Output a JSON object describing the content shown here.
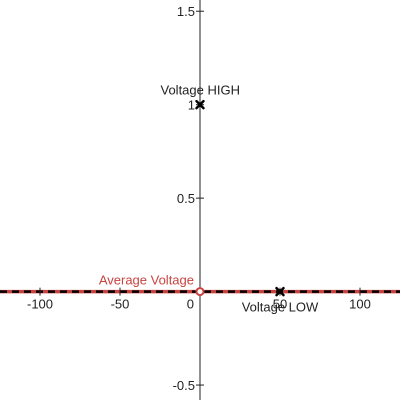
{
  "chart_data": {
    "type": "scatter",
    "title": "",
    "xlabel": "",
    "ylabel": "",
    "xlim": [
      -125,
      125
    ],
    "ylim": [
      -0.58,
      1.56
    ],
    "grid": false,
    "x_ticks": [
      {
        "value": -100,
        "label": "-100"
      },
      {
        "value": -50,
        "label": "-50"
      },
      {
        "value": 50,
        "label": "50"
      },
      {
        "value": 100,
        "label": "100"
      }
    ],
    "y_ticks": [
      {
        "value": -0.5,
        "label": "-0.5"
      },
      {
        "value": 0.5,
        "label": "0.5"
      },
      {
        "value": 1,
        "label": "1"
      },
      {
        "value": 1.5,
        "label": "1.5"
      }
    ],
    "origin_label": "0",
    "points": [
      {
        "x": 0,
        "y": 1,
        "label": "Voltage HIGH",
        "marker": "x",
        "color": "#000000",
        "label_position": "above-left"
      },
      {
        "x": 50,
        "y": 0,
        "label": "Voltage LOW",
        "marker": "x",
        "color": "#000000",
        "label_position": "below"
      }
    ],
    "lines": [
      {
        "y": 0,
        "label": "Average Voltage",
        "color": "#c74440",
        "style": "solid",
        "label_position": "above-left"
      },
      {
        "y": 0,
        "color": "#000000",
        "style": "dashed"
      }
    ],
    "open_point": {
      "x": 0,
      "y": 0,
      "color": "#c74440"
    }
  }
}
